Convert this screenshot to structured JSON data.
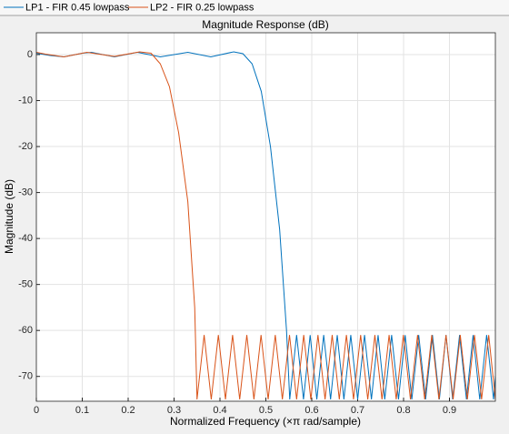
{
  "chart_data": {
    "type": "line",
    "title": "Magnitude Response (dB)",
    "x_label": "Normalized Frequency (×π rad/sample)",
    "y_label": "Magnitude (dB)",
    "xlim": [
      0,
      1
    ],
    "ylim": [
      -75.4,
      4.75
    ],
    "xticks": [
      0,
      0.1,
      0.2,
      0.3,
      0.4,
      0.5,
      0.6,
      0.7,
      0.8,
      0.9
    ],
    "yticks": [
      0,
      -10,
      -20,
      -30,
      -40,
      -50,
      -60,
      -70
    ],
    "grid": true,
    "legend": "top",
    "series": [
      {
        "name": "LP1 - FIR 0.45 lowpass",
        "color": "#0072bd",
        "x": [
          0,
          0.03,
          0.06,
          0.1,
          0.12,
          0.17,
          0.22,
          0.27,
          0.33,
          0.38,
          0.43,
          0.45,
          0.47,
          0.49,
          0.51,
          0.53,
          0.545,
          0.552,
          0.567,
          0.582,
          0.5965,
          0.611,
          0.626,
          0.641,
          0.6555,
          0.67,
          0.685,
          0.7,
          0.715,
          0.73,
          0.7445,
          0.759,
          0.774,
          0.789,
          0.8035,
          0.818,
          0.833,
          0.848,
          0.863,
          0.878,
          0.8925,
          0.907,
          0.922,
          0.937,
          0.9515,
          0.966,
          0.981,
          0.996,
          1.0
        ],
        "values": [
          0.3,
          -0.2,
          -0.5,
          0.3,
          0.5,
          -0.5,
          0.5,
          -0.5,
          0.5,
          -0.5,
          0.6,
          0.2,
          -2,
          -8,
          -20,
          -38,
          -60,
          -75,
          -61,
          -75,
          -61,
          -75,
          -61,
          -75,
          -61,
          -75,
          -61,
          -75,
          -61,
          -75,
          -61,
          -75,
          -61,
          -75,
          -61,
          -75,
          -61,
          -75,
          -61,
          -75,
          -61,
          -75,
          -61,
          -75,
          -61,
          -75,
          -61,
          -75,
          -70
        ]
      },
      {
        "name": "LP2 - FIR 0.25 lowpass",
        "color": "#d95319",
        "x": [
          0,
          0.02,
          0.06,
          0.11,
          0.17,
          0.225,
          0.25,
          0.27,
          0.29,
          0.31,
          0.33,
          0.345,
          0.35,
          0.3655,
          0.381,
          0.3965,
          0.412,
          0.4275,
          0.443,
          0.4585,
          0.474,
          0.4895,
          0.505,
          0.5205,
          0.536,
          0.5515,
          0.567,
          0.5825,
          0.598,
          0.6135,
          0.629,
          0.6445,
          0.66,
          0.6755,
          0.691,
          0.7065,
          0.722,
          0.7375,
          0.753,
          0.7685,
          0.784,
          0.7995,
          0.815,
          0.8305,
          0.846,
          0.8615,
          0.877,
          0.8925,
          0.908,
          0.9235,
          0.939,
          0.9545,
          0.97,
          0.9855,
          1.0
        ],
        "values": [
          0.5,
          0.1,
          -0.5,
          0.5,
          -0.4,
          0.6,
          0.3,
          -2,
          -7,
          -17,
          -32,
          -55,
          -75,
          -61,
          -75,
          -61,
          -75,
          -61,
          -75,
          -61,
          -75,
          -61,
          -75,
          -61,
          -75,
          -61,
          -75,
          -61,
          -75,
          -61,
          -75,
          -61,
          -75,
          -61,
          -75,
          -61,
          -75,
          -61,
          -75,
          -61,
          -75,
          -61,
          -75,
          -61,
          -75,
          -61,
          -75,
          -61,
          -75,
          -61,
          -75,
          -61,
          -75,
          -61,
          -75
        ]
      }
    ]
  }
}
